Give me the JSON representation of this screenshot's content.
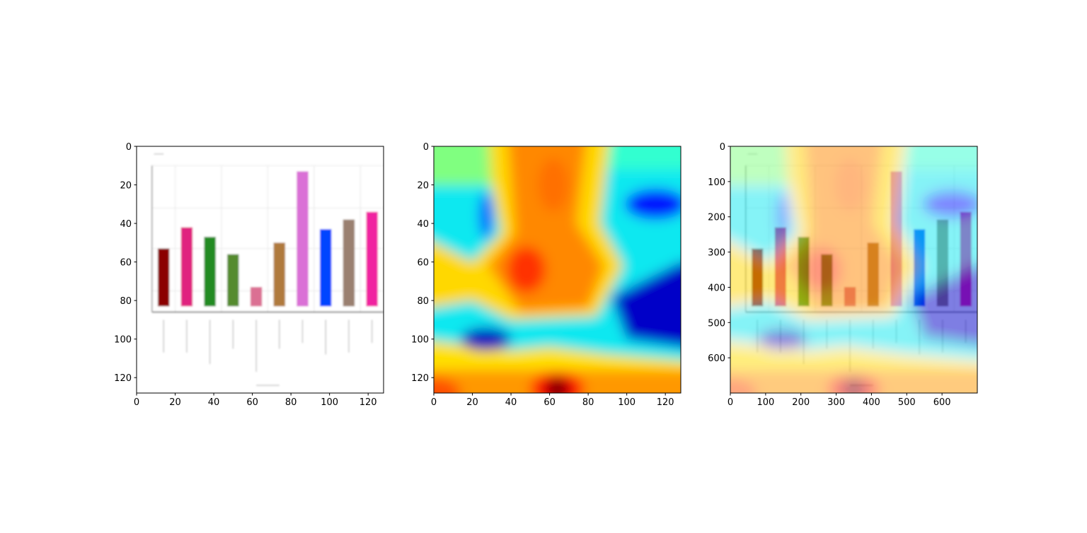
{
  "chart_data": [
    {
      "type": "image",
      "xlim": [
        0,
        128
      ],
      "ylim": [
        128,
        0
      ],
      "xticks": [
        0,
        20,
        40,
        60,
        80,
        100,
        120
      ],
      "yticks": [
        0,
        20,
        40,
        60,
        80,
        100,
        120
      ]
    },
    {
      "type": "image",
      "xlim": [
        0,
        128
      ],
      "ylim": [
        128,
        0
      ],
      "xticks": [
        0,
        20,
        40,
        60,
        80,
        100,
        120
      ],
      "yticks": [
        0,
        20,
        40,
        60,
        80,
        100,
        120
      ]
    },
    {
      "type": "image",
      "xlim": [
        0,
        700
      ],
      "ylim": [
        700,
        0
      ],
      "xticks": [
        0,
        100,
        200,
        300,
        400,
        500,
        600
      ],
      "yticks": [
        0,
        100,
        200,
        300,
        400,
        500,
        600
      ]
    }
  ]
}
